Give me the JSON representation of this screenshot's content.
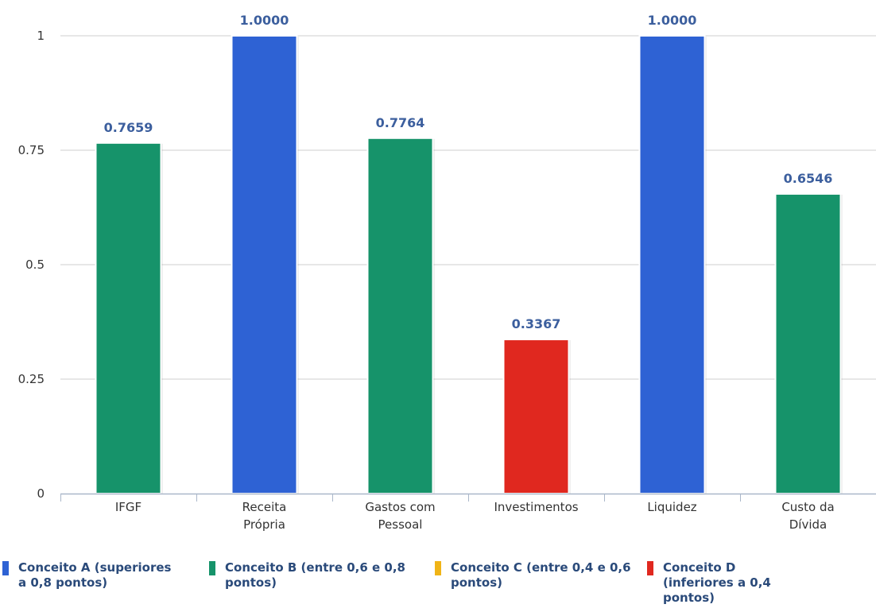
{
  "chart_data": {
    "type": "bar",
    "categories": [
      [
        "IFGF"
      ],
      [
        "Receita",
        "Própria"
      ],
      [
        "Gastos com",
        "Pessoal"
      ],
      [
        "Investimentos"
      ],
      [
        "Liquidez"
      ],
      [
        "Custo da",
        "Dívida"
      ]
    ],
    "values": [
      0.7659,
      1.0,
      0.7764,
      0.3367,
      1.0,
      0.6546
    ],
    "value_labels": [
      "0.7659",
      "1.0000",
      "0.7764",
      "0.3367",
      "1.0000",
      "0.6546"
    ],
    "bar_colors": [
      "#16936a",
      "#2e62d4",
      "#16936a",
      "#e0281f",
      "#2e62d4",
      "#16936a"
    ],
    "ylim": [
      0,
      1
    ],
    "yticks": [
      0,
      0.25,
      0.5,
      0.75,
      1
    ],
    "ytick_labels": [
      "0",
      "0.25",
      "0.5",
      "0.75",
      "1"
    ],
    "grid": true,
    "legend_placement": "bottom",
    "legend": [
      {
        "label": "Conceito A (superiores a 0,8 pontos)",
        "color": "#2e62d4"
      },
      {
        "label": "Conceito B (entre 0,6 e 0,8 pontos)",
        "color": "#16936a"
      },
      {
        "label": "Conceito C (entre 0,4 e 0,6 pontos)",
        "color": "#f0b417"
      },
      {
        "label": "Conceito D (inferiores a 0,4 pontos)",
        "color": "#e0281f"
      }
    ]
  }
}
